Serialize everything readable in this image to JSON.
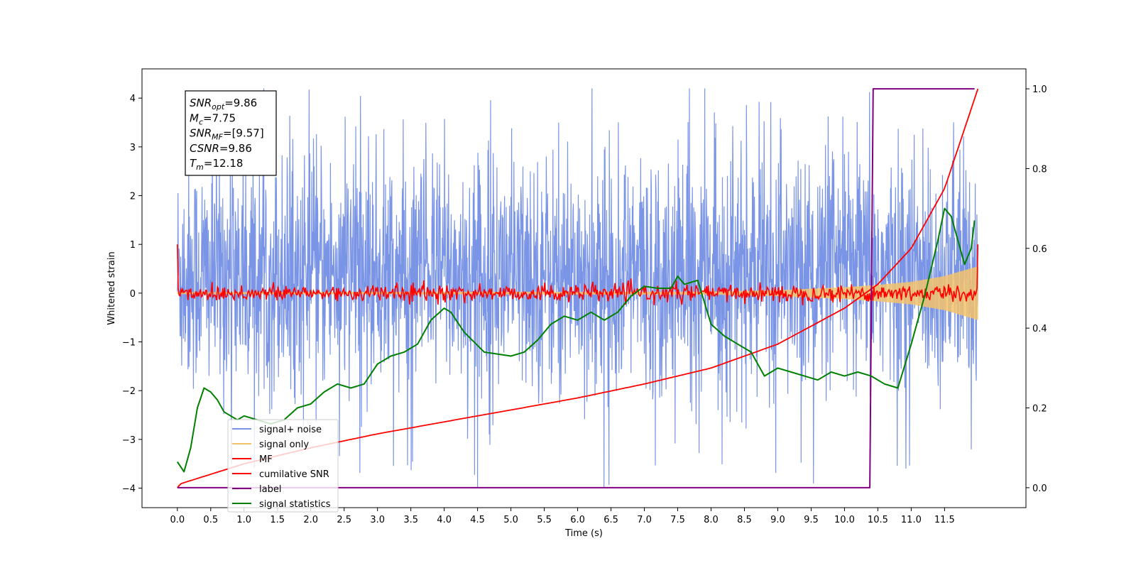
{
  "chart_data": {
    "type": "line",
    "title": "",
    "xlabel": "Time (s)",
    "ylabel": "Whitened strain",
    "ylabel_right": "",
    "xlim": [
      -0.53,
      12.72
    ],
    "ylim": [
      -4.4,
      4.6
    ],
    "ylim_right": [
      -0.05,
      1.05
    ],
    "x_ticks": [
      0.0,
      0.5,
      1.0,
      1.5,
      2.0,
      2.5,
      3.0,
      3.5,
      4.0,
      4.5,
      5.0,
      5.5,
      6.0,
      6.5,
      7.0,
      7.5,
      8.0,
      8.5,
      9.0,
      9.5,
      10.0,
      10.5,
      11.0,
      11.5
    ],
    "x_tick_labels": [
      "0.0",
      "0.5",
      "1.0",
      "1.5",
      "2.0",
      "2.5",
      "3.0",
      "3.5",
      "4.0",
      "4.5",
      "5.0",
      "5.5",
      "6.0",
      "6.5",
      "7.0",
      "7.5",
      "8.0",
      "8.5",
      "9.0",
      "9.5",
      "10.0",
      "10.5",
      "11.0",
      "11.5"
    ],
    "y_ticks": [
      -4,
      -3,
      -2,
      -1,
      0,
      1,
      2,
      3,
      4
    ],
    "y_tick_labels": [
      "−4",
      "−3",
      "−2",
      "−1",
      "0",
      "1",
      "2",
      "3",
      "4"
    ],
    "y_right_ticks": [
      0.0,
      0.2,
      0.4,
      0.6,
      0.8,
      1.0
    ],
    "y_right_tick_labels": [
      "0.0",
      "0.2",
      "0.4",
      "0.6",
      "0.8",
      "1.0"
    ],
    "grid": false,
    "legend_position": "bottom-left",
    "series": [
      {
        "name": "signal+ noise",
        "color": "#7a94e6",
        "axis": "left",
        "style": "noise",
        "x_range": [
          0.0,
          12.0
        ],
        "envelope_typical": [
          -1.5,
          2.3
        ],
        "approx_extremes": [
          -4.0,
          4.2
        ]
      },
      {
        "name": "signal only",
        "color": "#f5c36b",
        "axis": "left",
        "style": "chirp",
        "x_range": [
          0.0,
          12.0
        ],
        "envelope": {
          "x": [
            0,
            8.0,
            9.0,
            10.0,
            10.5,
            11.0,
            11.5,
            12.0
          ],
          "amp": [
            0.02,
            0.03,
            0.06,
            0.12,
            0.17,
            0.23,
            0.35,
            0.55
          ]
        }
      },
      {
        "name": "MF",
        "color": "#ff0000",
        "axis": "left",
        "style": "noise",
        "x_range": [
          0.0,
          12.0
        ],
        "start_value": 1.0,
        "end_value": 1.0,
        "typical_range": [
          -0.15,
          0.15
        ],
        "approx_extremes": [
          -0.25,
          0.3
        ]
      },
      {
        "name": "cumilative SNR",
        "color": "#ff0000",
        "axis": "right",
        "x": [
          0.0,
          0.05,
          1.0,
          2.0,
          3.0,
          4.0,
          5.0,
          6.0,
          7.0,
          8.0,
          9.0,
          10.0,
          10.5,
          11.0,
          11.5,
          12.0
        ],
        "values": [
          0.0,
          0.01,
          0.06,
          0.1,
          0.135,
          0.165,
          0.195,
          0.225,
          0.26,
          0.3,
          0.36,
          0.45,
          0.51,
          0.6,
          0.75,
          1.0
        ]
      },
      {
        "name": "label",
        "color": "#800080",
        "axis": "right",
        "x": [
          0.0,
          10.38,
          10.43,
          11.95
        ],
        "values": [
          0.0,
          0.0,
          1.0,
          1.0
        ]
      },
      {
        "name": "signal statistics",
        "color": "#008000",
        "axis": "right",
        "x": [
          0.0,
          0.1,
          0.2,
          0.3,
          0.4,
          0.5,
          0.6,
          0.7,
          0.8,
          0.9,
          1.0,
          1.2,
          1.4,
          1.6,
          1.8,
          2.0,
          2.2,
          2.4,
          2.6,
          2.8,
          3.0,
          3.2,
          3.4,
          3.6,
          3.8,
          4.0,
          4.1,
          4.3,
          4.6,
          5.0,
          5.2,
          5.4,
          5.6,
          5.8,
          6.0,
          6.2,
          6.4,
          6.6,
          6.8,
          7.0,
          7.2,
          7.4,
          7.5,
          7.6,
          7.8,
          8.0,
          8.2,
          8.4,
          8.6,
          8.8,
          9.0,
          9.2,
          9.4,
          9.6,
          9.8,
          10.0,
          10.2,
          10.4,
          10.6,
          10.8,
          11.0,
          11.2,
          11.4,
          11.5,
          11.6,
          11.7,
          11.8,
          11.9,
          11.95
        ],
        "values": [
          0.065,
          0.04,
          0.1,
          0.2,
          0.25,
          0.24,
          0.22,
          0.19,
          0.18,
          0.17,
          0.18,
          0.17,
          0.16,
          0.17,
          0.2,
          0.21,
          0.24,
          0.26,
          0.25,
          0.26,
          0.31,
          0.33,
          0.34,
          0.36,
          0.42,
          0.45,
          0.44,
          0.39,
          0.34,
          0.33,
          0.34,
          0.37,
          0.41,
          0.43,
          0.42,
          0.44,
          0.42,
          0.44,
          0.48,
          0.505,
          0.5,
          0.5,
          0.53,
          0.51,
          0.52,
          0.41,
          0.38,
          0.36,
          0.34,
          0.28,
          0.3,
          0.29,
          0.28,
          0.27,
          0.29,
          0.28,
          0.29,
          0.28,
          0.26,
          0.25,
          0.36,
          0.48,
          0.62,
          0.7,
          0.68,
          0.62,
          0.56,
          0.6,
          0.67
        ]
      }
    ],
    "annotation_box": [
      {
        "label": "SNR",
        "sub": "opt",
        "value": "=9.86"
      },
      {
        "label": "M",
        "sub": "c",
        "value": "=7.75"
      },
      {
        "label": "SNR",
        "sub": "MF",
        "value": "=[9.57]"
      },
      {
        "label": "CSNR",
        "sub": "",
        "value": "=9.86"
      },
      {
        "label": "T",
        "sub": "m",
        "value": "=12.18"
      }
    ]
  }
}
